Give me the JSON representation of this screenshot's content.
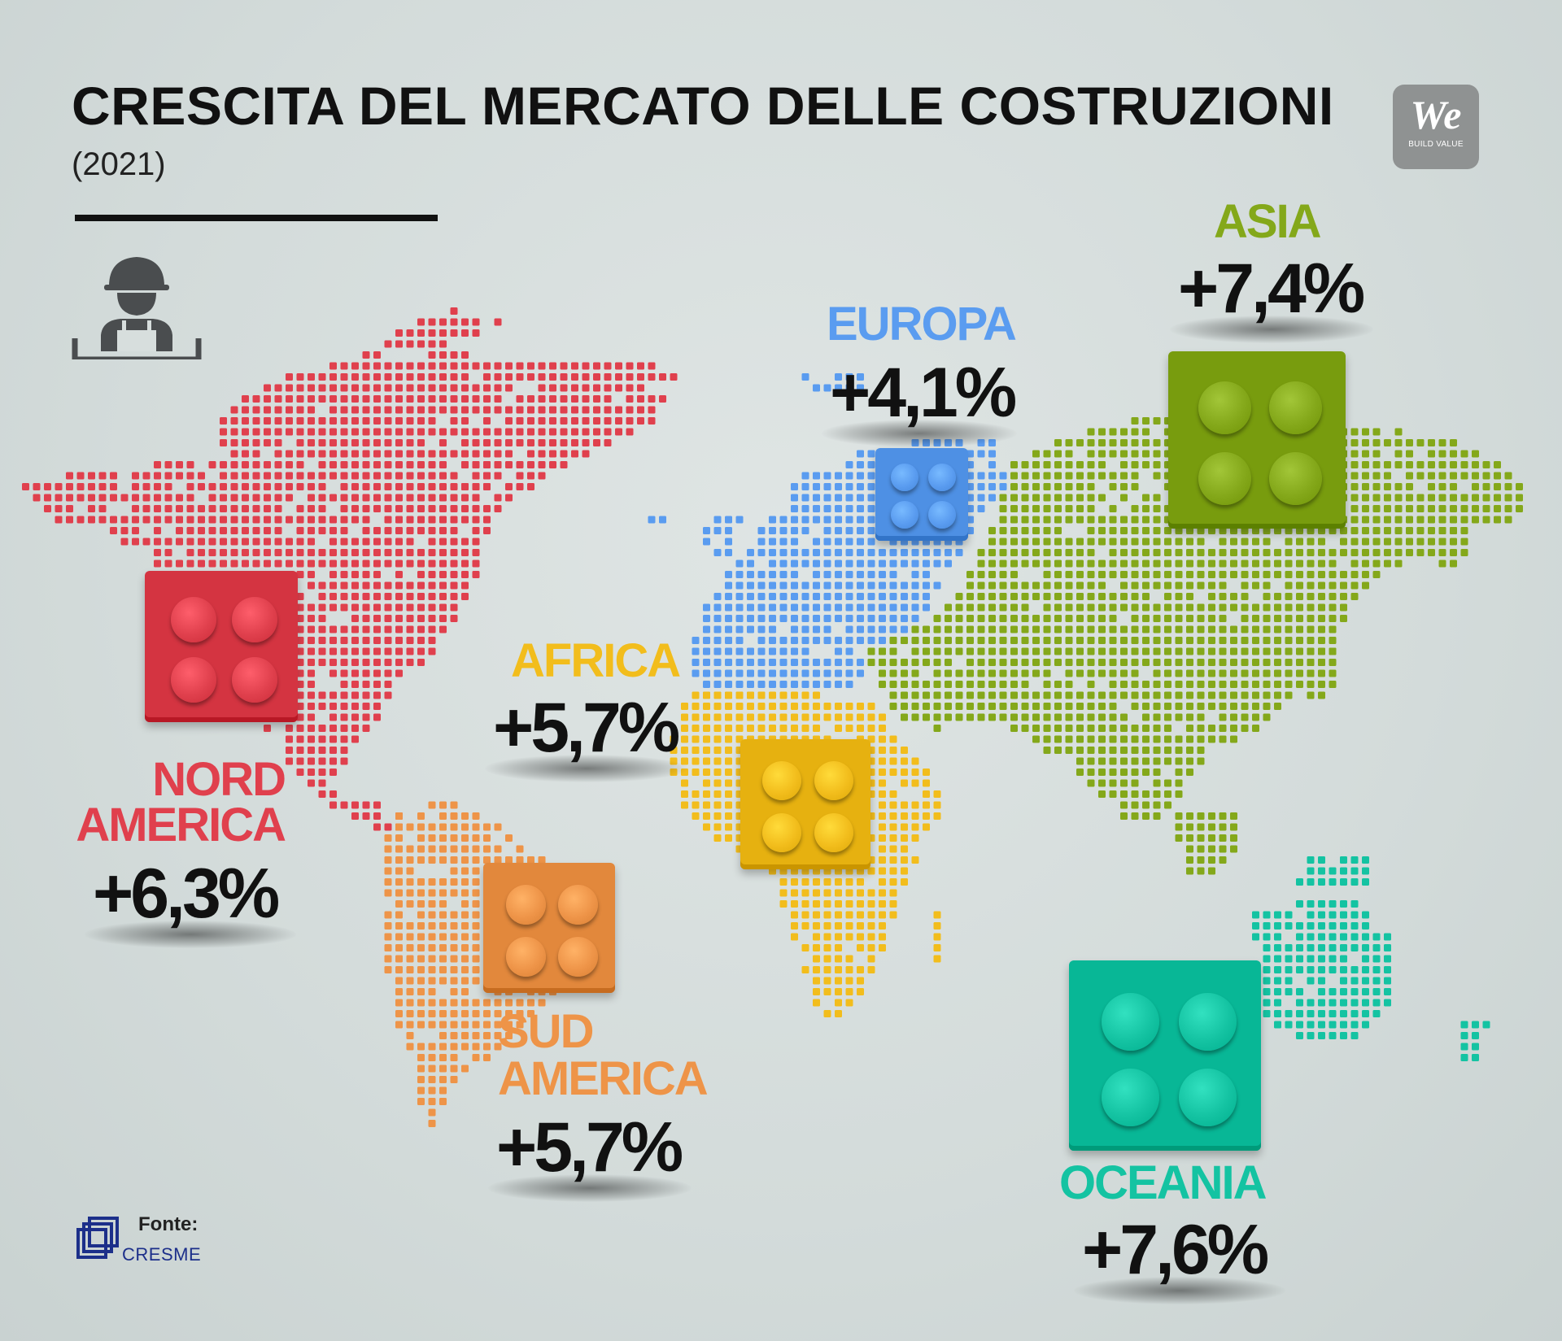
{
  "header": {
    "title": "CRESCITA DEL MERCATO DELLE COSTRUZIONI",
    "subtitle": "(2021)"
  },
  "logo": {
    "main": "We",
    "sub": "BUILD VALUE"
  },
  "regions": [
    {
      "key": "nord_america",
      "name_lines": [
        "NORD",
        "AMERICA"
      ],
      "value": "+6,3%",
      "color": "#e0404d"
    },
    {
      "key": "sud_america",
      "name_lines": [
        "SUD",
        "AMERICA"
      ],
      "value": "+5,7%",
      "color": "#ee9448"
    },
    {
      "key": "europa",
      "name_lines": [
        "EUROPA"
      ],
      "value": "+4,1%",
      "color": "#5a9cf0"
    },
    {
      "key": "africa",
      "name_lines": [
        "AFRICA"
      ],
      "value": "+5,7%",
      "color": "#f2bd1c"
    },
    {
      "key": "asia",
      "name_lines": [
        "ASIA"
      ],
      "value": "+7,4%",
      "color": "#84a81a"
    },
    {
      "key": "oceania",
      "name_lines": [
        "OCEANIA"
      ],
      "value": "+7,6%",
      "color": "#14c3a2"
    }
  ],
  "source": {
    "label": "Fonte:",
    "name": "CRESME"
  },
  "icons": [
    "construction-worker-icon",
    "cresme-logo-icon"
  ]
}
